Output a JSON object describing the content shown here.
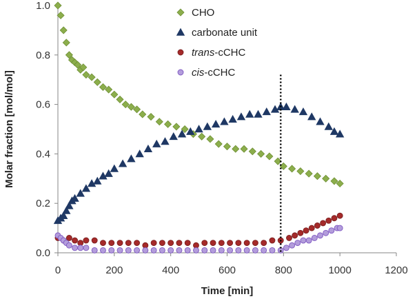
{
  "chart_data": {
    "type": "scatter",
    "xlabel": "Time [min]",
    "ylabel": "Molar fraction [mol/mol]",
    "xlim": [
      0,
      1200
    ],
    "ylim": [
      0,
      1.0
    ],
    "xticks": [
      "0",
      "200",
      "400",
      "600",
      "800",
      "1000",
      "1200"
    ],
    "yticks": [
      "0.0",
      "0.2",
      "0.4",
      "0.6",
      "0.8",
      "1.0"
    ],
    "grid": false,
    "legend_position": "top-center",
    "reference_line": {
      "x": 790,
      "style": "dotted",
      "color": "#000000"
    },
    "series": [
      {
        "name": "CHO",
        "legend_parts": [
          {
            "text": "CHO",
            "italic": false
          }
        ],
        "marker": "diamond",
        "color": "#8cae4c",
        "stroke": "#6e8f35",
        "x": [
          0,
          10,
          20,
          30,
          40,
          50,
          60,
          70,
          80,
          90,
          100,
          120,
          140,
          160,
          180,
          200,
          220,
          240,
          260,
          280,
          300,
          330,
          360,
          390,
          420,
          450,
          480,
          510,
          540,
          570,
          600,
          630,
          660,
          690,
          720,
          750,
          780,
          800,
          830,
          860,
          890,
          920,
          950,
          980,
          1000
        ],
        "y": [
          1.0,
          0.96,
          0.9,
          0.85,
          0.8,
          0.78,
          0.77,
          0.76,
          0.74,
          0.75,
          0.72,
          0.71,
          0.69,
          0.67,
          0.66,
          0.64,
          0.62,
          0.6,
          0.59,
          0.58,
          0.56,
          0.55,
          0.53,
          0.52,
          0.51,
          0.5,
          0.48,
          0.47,
          0.46,
          0.44,
          0.43,
          0.42,
          0.42,
          0.41,
          0.4,
          0.39,
          0.37,
          0.35,
          0.34,
          0.33,
          0.32,
          0.31,
          0.3,
          0.29,
          0.28
        ]
      },
      {
        "name": "carbonate unit",
        "legend_parts": [
          {
            "text": "carbonate unit",
            "italic": false
          }
        ],
        "marker": "triangle",
        "color": "#1f3864",
        "stroke": "#1f3864",
        "x": [
          0,
          10,
          20,
          30,
          40,
          50,
          60,
          80,
          100,
          120,
          140,
          160,
          180,
          200,
          230,
          260,
          290,
          320,
          350,
          380,
          410,
          440,
          470,
          500,
          530,
          560,
          590,
          620,
          650,
          680,
          710,
          740,
          770,
          790,
          810,
          840,
          870,
          900,
          930,
          960,
          980,
          1000
        ],
        "y": [
          0.13,
          0.14,
          0.15,
          0.17,
          0.19,
          0.21,
          0.22,
          0.24,
          0.26,
          0.28,
          0.29,
          0.31,
          0.32,
          0.34,
          0.36,
          0.38,
          0.4,
          0.42,
          0.44,
          0.45,
          0.47,
          0.48,
          0.49,
          0.5,
          0.51,
          0.52,
          0.53,
          0.54,
          0.55,
          0.56,
          0.56,
          0.57,
          0.58,
          0.59,
          0.59,
          0.58,
          0.57,
          0.55,
          0.53,
          0.51,
          0.49,
          0.48
        ]
      },
      {
        "name": "trans-cCHC",
        "legend_parts": [
          {
            "text": "trans",
            "italic": true
          },
          {
            "text": "-cCHC",
            "italic": false
          }
        ],
        "marker": "circle",
        "color": "#a52a2a",
        "stroke": "#7a1f1f",
        "x": [
          0,
          20,
          40,
          60,
          80,
          100,
          130,
          160,
          190,
          220,
          250,
          280,
          310,
          340,
          370,
          400,
          430,
          460,
          490,
          520,
          550,
          580,
          610,
          640,
          670,
          700,
          730,
          760,
          790,
          820,
          840,
          860,
          880,
          900,
          920,
          940,
          960,
          980,
          1000
        ],
        "y": [
          0.06,
          0.05,
          0.06,
          0.05,
          0.04,
          0.05,
          0.05,
          0.04,
          0.04,
          0.04,
          0.04,
          0.04,
          0.03,
          0.04,
          0.04,
          0.04,
          0.04,
          0.04,
          0.03,
          0.04,
          0.04,
          0.04,
          0.04,
          0.04,
          0.04,
          0.04,
          0.04,
          0.05,
          0.05,
          0.06,
          0.07,
          0.08,
          0.09,
          0.1,
          0.11,
          0.12,
          0.13,
          0.14,
          0.15
        ]
      },
      {
        "name": "cis-cCHC",
        "legend_parts": [
          {
            "text": "cis",
            "italic": true
          },
          {
            "text": "-cCHC",
            "italic": false
          }
        ],
        "marker": "circle",
        "color": "#b39ddb",
        "stroke": "#7e57c2",
        "x": [
          0,
          10,
          20,
          30,
          40,
          60,
          80,
          100,
          130,
          160,
          190,
          220,
          250,
          280,
          310,
          340,
          370,
          400,
          430,
          460,
          490,
          520,
          550,
          580,
          610,
          640,
          670,
          700,
          730,
          760,
          790,
          810,
          830,
          850,
          870,
          890,
          910,
          930,
          950,
          970,
          990,
          1000
        ],
        "y": [
          0.07,
          0.06,
          0.05,
          0.04,
          0.03,
          0.02,
          0.02,
          0.02,
          0.01,
          0.01,
          0.01,
          0.01,
          0.01,
          0.01,
          0.01,
          0.01,
          0.01,
          0.01,
          0.01,
          0.01,
          0.01,
          0.01,
          0.01,
          0.01,
          0.01,
          0.01,
          0.01,
          0.01,
          0.01,
          0.01,
          0.01,
          0.02,
          0.03,
          0.04,
          0.05,
          0.05,
          0.06,
          0.07,
          0.08,
          0.09,
          0.1,
          0.1
        ]
      }
    ]
  }
}
